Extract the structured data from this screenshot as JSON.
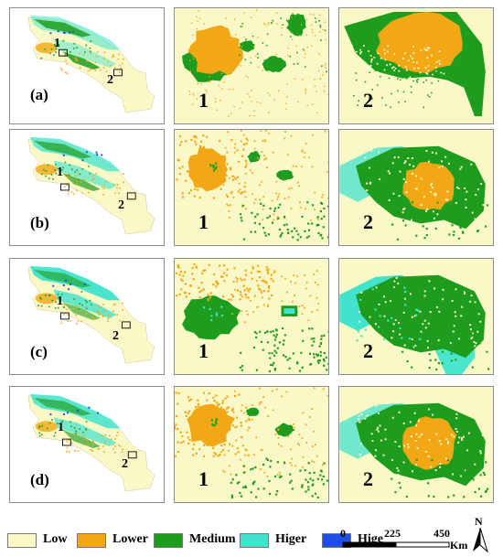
{
  "legend": [
    {
      "label": "Low",
      "color": "#fbf8c7"
    },
    {
      "label": "Lower",
      "color": "#f2a715"
    },
    {
      "label": "Medium",
      "color": "#1e9c1e"
    },
    {
      "label": "Higer",
      "color": "#41e3cc"
    },
    {
      "label": "Hige",
      "color": "#1f4ee6"
    }
  ],
  "scale_bar": {
    "ticks": [
      "0",
      "225",
      "450"
    ],
    "unit": "Km"
  },
  "north_label": "N",
  "rows": [
    {
      "label": "(a)",
      "zoom1": "1",
      "zoom2": "2",
      "marker1": "1",
      "marker2": "2"
    },
    {
      "label": "(b)",
      "zoom1": "1",
      "zoom2": "2",
      "marker1": "1",
      "marker2": "2"
    },
    {
      "label": "(c)",
      "zoom1": "1",
      "zoom2": "2",
      "marker1": "1",
      "marker2": "2"
    },
    {
      "label": "(d)",
      "zoom1": "1",
      "zoom2": "2",
      "marker1": "1",
      "marker2": "2"
    }
  ]
}
